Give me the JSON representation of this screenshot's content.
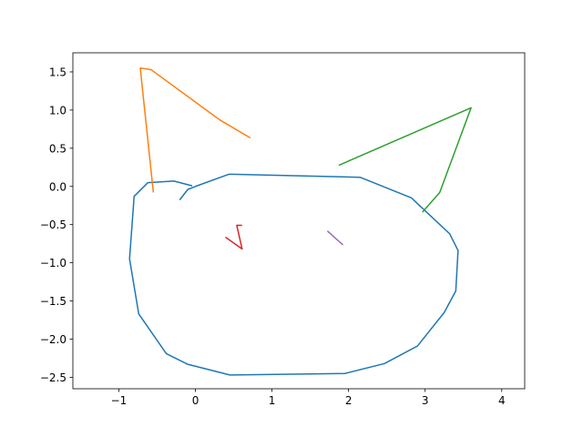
{
  "chart_data": {
    "type": "line",
    "title": "",
    "xlabel": "",
    "ylabel": "",
    "xlim": [
      -1.6,
      4.3
    ],
    "ylim": [
      -2.65,
      1.75
    ],
    "xticks": [
      -1,
      0,
      1,
      2,
      3,
      4
    ],
    "yticks": [
      1.5,
      1.0,
      0.5,
      0.0,
      -0.5,
      -1.0,
      -1.5,
      -2.0,
      -2.5
    ],
    "xtick_labels": [
      "−1",
      "0",
      "1",
      "2",
      "3",
      "4"
    ],
    "ytick_labels": [
      "1.5",
      "1.0",
      "0.5",
      "0.0",
      "−0.5",
      "−1.0",
      "−1.5",
      "−2.0",
      "−2.5"
    ],
    "grid": false,
    "series": [
      {
        "color": "#1f77b4",
        "points": [
          [
            -0.2,
            -0.17
          ],
          [
            -0.1,
            -0.04
          ],
          [
            0.0,
            0.0
          ],
          [
            0.44,
            0.16
          ],
          [
            2.15,
            0.12
          ],
          [
            2.82,
            -0.15
          ],
          [
            3.32,
            -0.62
          ],
          [
            3.43,
            -0.84
          ],
          [
            3.4,
            -1.37
          ],
          [
            3.25,
            -1.65
          ],
          [
            2.9,
            -2.09
          ],
          [
            2.47,
            -2.32
          ],
          [
            1.95,
            -2.45
          ],
          [
            0.45,
            -2.47
          ],
          [
            -0.1,
            -2.33
          ],
          [
            -0.38,
            -2.19
          ],
          [
            -0.74,
            -1.67
          ],
          [
            -0.86,
            -0.95
          ],
          [
            -0.8,
            -0.13
          ],
          [
            -0.62,
            0.05
          ],
          [
            -0.28,
            0.07
          ],
          [
            -0.05,
            0.01
          ]
        ]
      },
      {
        "color": "#ff7f0e",
        "points": [
          [
            -0.55,
            -0.07
          ],
          [
            -0.72,
            1.55
          ],
          [
            -0.58,
            1.53
          ],
          [
            0.32,
            0.87
          ],
          [
            0.71,
            0.64
          ]
        ]
      },
      {
        "color": "#2ca02c",
        "points": [
          [
            1.88,
            0.28
          ],
          [
            3.6,
            1.03
          ],
          [
            3.19,
            -0.08
          ],
          [
            2.97,
            -0.33
          ]
        ]
      },
      {
        "color": "#d62728",
        "points": [
          [
            0.4,
            -0.67
          ],
          [
            0.61,
            -0.82
          ],
          [
            0.54,
            -0.51
          ],
          [
            0.6,
            -0.51
          ]
        ]
      },
      {
        "color": "#9467bd",
        "points": [
          [
            1.73,
            -0.59
          ],
          [
            1.92,
            -0.76
          ]
        ]
      }
    ]
  }
}
